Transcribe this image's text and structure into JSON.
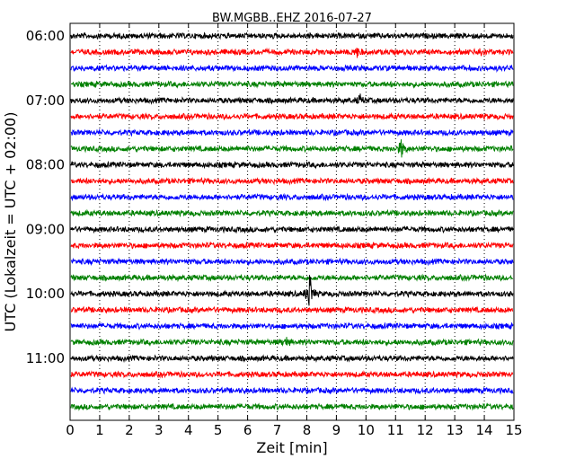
{
  "chart_data": {
    "type": "line",
    "title": "BW.MGBB..EHZ 2016-07-27",
    "xlabel": "Zeit  [min]",
    "ylabel": "UTC (Lokalzeit = UTC + 02:00)",
    "xlim": [
      0,
      15
    ],
    "x_ticks": [
      "0",
      "1",
      "2",
      "3",
      "4",
      "5",
      "6",
      "7",
      "8",
      "9",
      "10",
      "11",
      "12",
      "13",
      "14",
      "15"
    ],
    "y_tick_labels": [
      "06:00",
      "07:00",
      "08:00",
      "09:00",
      "10:00",
      "11:00"
    ],
    "grid": "vertical dotted lines at each minute",
    "trace_colors": [
      "#000000",
      "#ff0000",
      "#0000ff",
      "#008000"
    ],
    "trace_offsets_min": [
      0,
      15,
      30,
      45,
      60,
      75,
      90,
      105,
      120,
      135,
      150,
      165,
      180,
      195,
      210,
      225,
      240,
      255,
      280,
      295,
      310,
      325,
      340,
      355
    ],
    "trace_count": 24,
    "events": [
      {
        "trace_index": 1,
        "time_min": 9.7,
        "amplitude": "small"
      },
      {
        "trace_index": 1,
        "time_min": 13.9,
        "amplitude": "small"
      },
      {
        "trace_index": 4,
        "time_min": 9.8,
        "amplitude": "small"
      },
      {
        "trace_index": 7,
        "time_min": 11.2,
        "amplitude": "medium"
      },
      {
        "trace_index": 16,
        "time_min": 8.1,
        "amplitude": "large"
      },
      {
        "trace_index": 19,
        "time_min": 7.3,
        "amplitude": "small"
      }
    ]
  }
}
